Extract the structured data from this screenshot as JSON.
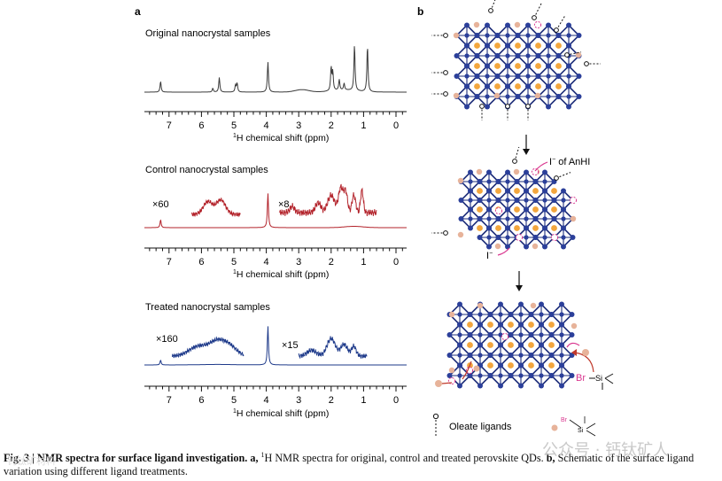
{
  "panel_a": {
    "label": "a",
    "spectra": [
      {
        "title": "Original nanocrystal samples",
        "color": "#3a3a3a",
        "axis": {
          "ticks": [
            "7",
            "6",
            "5",
            "4",
            "3",
            "2",
            "1",
            "0"
          ],
          "label_prefix": "1",
          "label": "H chemical shift (ppm)"
        },
        "peaks": [
          {
            "ppm": 7.26,
            "height": 0.22
          },
          {
            "ppm": 5.65,
            "height": 0.08
          },
          {
            "ppm": 5.45,
            "height": 0.3
          },
          {
            "ppm": 4.95,
            "height": 0.14
          },
          {
            "ppm": 4.9,
            "height": 0.18
          },
          {
            "ppm": 3.95,
            "height": 0.62
          },
          {
            "ppm": 2.0,
            "height": 0.48
          },
          {
            "ppm": 1.95,
            "height": 0.38
          },
          {
            "ppm": 1.75,
            "height": 0.22
          },
          {
            "ppm": 1.6,
            "height": 0.14
          },
          {
            "ppm": 1.28,
            "height": 0.95
          },
          {
            "ppm": 0.88,
            "height": 0.95
          }
        ]
      },
      {
        "title": "Control nanocrystal samples",
        "color": "#b3232b",
        "axis": {
          "ticks": [
            "7",
            "6",
            "5",
            "4",
            "3",
            "2",
            "1",
            "0"
          ],
          "label_prefix": "1",
          "label": "H chemical shift (ppm)"
        },
        "multipliers": [
          "×60",
          "×8"
        ],
        "peaks": [
          {
            "ppm": 7.26,
            "height": 0.18
          },
          {
            "ppm": 3.95,
            "height": 0.78
          }
        ]
      },
      {
        "title": "Treated nanocrystal samples",
        "color": "#1e3a8a",
        "axis": {
          "ticks": [
            "7",
            "6",
            "5",
            "4",
            "3",
            "2",
            "1",
            "0"
          ],
          "label_prefix": "1",
          "label": "H chemical shift (ppm)"
        },
        "multipliers": [
          "×160",
          "×15"
        ],
        "peaks": [
          {
            "ppm": 7.26,
            "height": 0.1
          },
          {
            "ppm": 3.95,
            "height": 0.8
          }
        ]
      }
    ]
  },
  "panel_b": {
    "label": "b",
    "annotations": {
      "iodide_anhi": "I",
      "iodide_anhi_sup": "−",
      "iodide_anhi_suffix": " of AnHI",
      "iodide": "I",
      "iodide_sup": "−",
      "bromide_silane_br": "Br",
      "bromide_silane_si": "Si"
    },
    "legend": {
      "oleate": "Oleate ligands",
      "br": "Br",
      "si": "Si"
    }
  },
  "caption": {
    "fig_label": "Fig. 3 | NMR spectra for surface ligand investigation.",
    "a_label": "a,",
    "a_sup": "1",
    "a_text": "H NMR spectra for original, control and treated perovskite QDs.",
    "b_label": "b,",
    "b_text": "Schematic of the surface ligand variation using different ligand treatments."
  },
  "watermark": {
    "text": "公众号 · 钙钛矿人",
    "small": "钙钛矿材料"
  },
  "colors": {
    "octahedron": "#1f2f7a",
    "atom_blue": "#2b3f9a",
    "cation": "#f3a63d",
    "ligand_ball": "#e7b39a",
    "pink": "#d9368f",
    "red_arrow": "#c0392b"
  }
}
